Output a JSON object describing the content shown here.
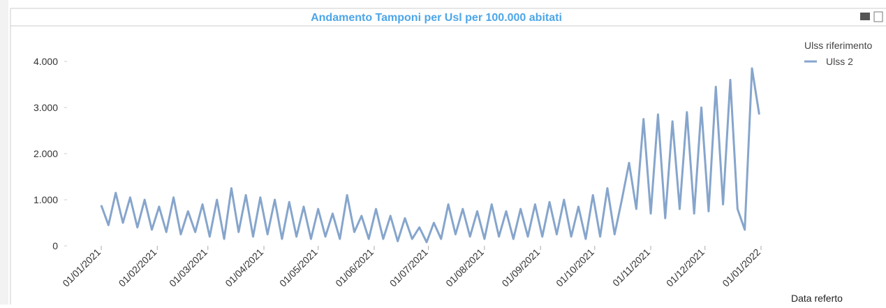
{
  "chart_data": {
    "type": "line",
    "title": "Andamento Tamponi per Usl per 100.000 abitati",
    "x_label": "Data referto",
    "legend_title": "Ulss riferimento",
    "x": [
      "2021-01-01",
      "2021-01-05",
      "2021-01-09",
      "2021-01-13",
      "2021-01-17",
      "2021-01-21",
      "2021-01-25",
      "2021-01-29",
      "2021-02-02",
      "2021-02-06",
      "2021-02-10",
      "2021-02-14",
      "2021-02-18",
      "2021-02-22",
      "2021-02-26",
      "2021-03-02",
      "2021-03-06",
      "2021-03-10",
      "2021-03-14",
      "2021-03-18",
      "2021-03-22",
      "2021-03-26",
      "2021-03-30",
      "2021-04-03",
      "2021-04-07",
      "2021-04-11",
      "2021-04-15",
      "2021-04-19",
      "2021-04-23",
      "2021-04-27",
      "2021-05-01",
      "2021-05-05",
      "2021-05-09",
      "2021-05-13",
      "2021-05-17",
      "2021-05-21",
      "2021-05-25",
      "2021-05-29",
      "2021-06-02",
      "2021-06-06",
      "2021-06-10",
      "2021-06-14",
      "2021-06-18",
      "2021-06-22",
      "2021-06-26",
      "2021-06-30",
      "2021-07-04",
      "2021-07-08",
      "2021-07-12",
      "2021-07-16",
      "2021-07-20",
      "2021-07-24",
      "2021-07-28",
      "2021-08-01",
      "2021-08-05",
      "2021-08-09",
      "2021-08-13",
      "2021-08-17",
      "2021-08-21",
      "2021-08-25",
      "2021-08-29",
      "2021-09-02",
      "2021-09-06",
      "2021-09-10",
      "2021-09-14",
      "2021-09-18",
      "2021-09-22",
      "2021-09-26",
      "2021-09-30",
      "2021-10-04",
      "2021-10-08",
      "2021-10-12",
      "2021-10-16",
      "2021-10-20",
      "2021-10-24",
      "2021-10-28",
      "2021-11-01",
      "2021-11-05",
      "2021-11-09",
      "2021-11-13",
      "2021-11-17",
      "2021-11-21",
      "2021-11-25",
      "2021-11-29",
      "2021-12-03",
      "2021-12-07",
      "2021-12-11",
      "2021-12-15",
      "2021-12-19",
      "2021-12-23",
      "2021-12-27",
      "2021-12-31"
    ],
    "series": [
      {
        "name": "Ulss 2",
        "color": "#86a5cc",
        "values": [
          880,
          450,
          1150,
          500,
          1050,
          400,
          1000,
          350,
          850,
          300,
          1050,
          250,
          750,
          300,
          900,
          200,
          1000,
          150,
          1250,
          300,
          1100,
          200,
          1050,
          250,
          1000,
          150,
          950,
          200,
          850,
          150,
          800,
          200,
          700,
          150,
          1100,
          300,
          650,
          150,
          800,
          150,
          650,
          100,
          600,
          150,
          400,
          80,
          500,
          150,
          900,
          250,
          800,
          200,
          750,
          150,
          900,
          200,
          750,
          150,
          800,
          200,
          900,
          200,
          950,
          250,
          1000,
          200,
          850,
          150,
          1100,
          200,
          1250,
          250,
          1000,
          1800,
          800,
          2750,
          700,
          2850,
          600,
          2700,
          800,
          2900,
          700,
          3000,
          750,
          3450,
          900,
          3600,
          800,
          350,
          3850,
          2850
        ]
      }
    ],
    "xlim": [
      "2021-01-01",
      "2022-01-01"
    ],
    "xticks": [
      {
        "value": "2021-01-01",
        "label": "01/01/2021"
      },
      {
        "value": "2021-02-01",
        "label": "01/02/2021"
      },
      {
        "value": "2021-03-01",
        "label": "01/03/2021"
      },
      {
        "value": "2021-04-01",
        "label": "01/04/2021"
      },
      {
        "value": "2021-05-01",
        "label": "01/05/2021"
      },
      {
        "value": "2021-06-01",
        "label": "01/06/2021"
      },
      {
        "value": "2021-07-01",
        "label": "01/07/2021"
      },
      {
        "value": "2021-08-01",
        "label": "01/08/2021"
      },
      {
        "value": "2021-09-01",
        "label": "01/09/2021"
      },
      {
        "value": "2021-10-01",
        "label": "01/10/2021"
      },
      {
        "value": "2021-11-01",
        "label": "01/11/2021"
      },
      {
        "value": "2021-12-01",
        "label": "01/12/2021"
      },
      {
        "value": "2022-01-01",
        "label": "01/01/2022"
      }
    ],
    "ylim": [
      0,
      4000
    ],
    "yticks": [
      0,
      {
        "value": 1000,
        "label": "1.000"
      },
      {
        "value": 2000,
        "label": "2.000"
      },
      {
        "value": 3000,
        "label": "3.000"
      },
      {
        "value": 4000,
        "label": "4.000"
      }
    ]
  }
}
